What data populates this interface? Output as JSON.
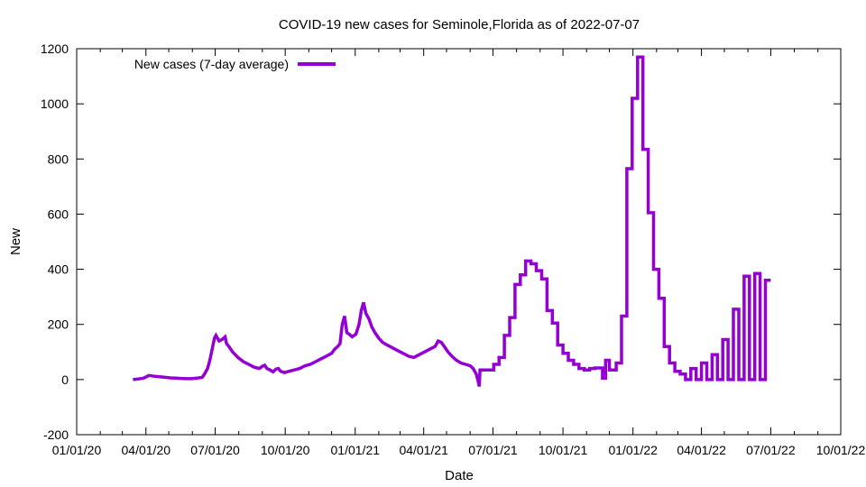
{
  "chart_data": {
    "type": "line",
    "title": "COVID-19 new cases for Seminole,Florida as of 2022-07-07",
    "xlabel": "Date",
    "ylabel": "New",
    "ylim": [
      -200,
      1200
    ],
    "xlim": [
      "2020-01-01",
      "2022-10-01"
    ],
    "x_ticks": [
      "01/01/20",
      "04/01/20",
      "07/01/20",
      "10/01/20",
      "01/01/21",
      "04/01/21",
      "07/01/21",
      "10/01/21",
      "01/01/22",
      "04/01/22",
      "07/01/22",
      "10/01/22"
    ],
    "y_ticks": [
      -200,
      0,
      200,
      400,
      600,
      800,
      1000,
      1200
    ],
    "grid": false,
    "legend": {
      "position": "top-left"
    },
    "colors": {
      "series": "#9400d3"
    },
    "series": [
      {
        "name": "New cases (7-day average)",
        "points": [
          [
            "2020-03-15",
            0
          ],
          [
            "2020-03-22",
            2
          ],
          [
            "2020-03-29",
            5
          ],
          [
            "2020-04-05",
            15
          ],
          [
            "2020-04-12",
            12
          ],
          [
            "2020-04-19",
            10
          ],
          [
            "2020-04-26",
            8
          ],
          [
            "2020-05-03",
            6
          ],
          [
            "2020-05-10",
            5
          ],
          [
            "2020-05-17",
            4
          ],
          [
            "2020-05-24",
            3
          ],
          [
            "2020-05-31",
            3
          ],
          [
            "2020-06-07",
            5
          ],
          [
            "2020-06-14",
            8
          ],
          [
            "2020-06-17",
            20
          ],
          [
            "2020-06-21",
            40
          ],
          [
            "2020-06-24",
            70
          ],
          [
            "2020-06-27",
            110
          ],
          [
            "2020-06-30",
            150
          ],
          [
            "2020-07-02",
            160
          ],
          [
            "2020-07-06",
            140
          ],
          [
            "2020-07-10",
            145
          ],
          [
            "2020-07-14",
            155
          ],
          [
            "2020-07-16",
            130
          ],
          [
            "2020-07-19",
            120
          ],
          [
            "2020-07-24",
            100
          ],
          [
            "2020-07-31",
            80
          ],
          [
            "2020-08-07",
            65
          ],
          [
            "2020-08-14",
            55
          ],
          [
            "2020-08-21",
            45
          ],
          [
            "2020-08-28",
            40
          ],
          [
            "2020-09-01",
            48
          ],
          [
            "2020-09-04",
            52
          ],
          [
            "2020-09-07",
            40
          ],
          [
            "2020-09-11",
            35
          ],
          [
            "2020-09-15",
            28
          ],
          [
            "2020-09-19",
            38
          ],
          [
            "2020-09-22",
            40
          ],
          [
            "2020-09-25",
            30
          ],
          [
            "2020-09-30",
            25
          ],
          [
            "2020-10-06",
            30
          ],
          [
            "2020-10-13",
            35
          ],
          [
            "2020-10-20",
            40
          ],
          [
            "2020-10-27",
            50
          ],
          [
            "2020-11-03",
            55
          ],
          [
            "2020-11-10",
            65
          ],
          [
            "2020-11-17",
            75
          ],
          [
            "2020-11-24",
            85
          ],
          [
            "2020-12-01",
            95
          ],
          [
            "2020-12-05",
            110
          ],
          [
            "2020-12-09",
            120
          ],
          [
            "2020-12-12",
            130
          ],
          [
            "2020-12-15",
            200
          ],
          [
            "2020-12-18",
            230
          ],
          [
            "2020-12-21",
            170
          ],
          [
            "2020-12-24",
            165
          ],
          [
            "2020-12-28",
            155
          ],
          [
            "2021-01-02",
            165
          ],
          [
            "2021-01-06",
            200
          ],
          [
            "2021-01-09",
            250
          ],
          [
            "2021-01-12",
            280
          ],
          [
            "2021-01-15",
            240
          ],
          [
            "2021-01-19",
            220
          ],
          [
            "2021-01-23",
            190
          ],
          [
            "2021-01-27",
            170
          ],
          [
            "2021-02-01",
            150
          ],
          [
            "2021-02-06",
            135
          ],
          [
            "2021-02-12",
            125
          ],
          [
            "2021-02-19",
            115
          ],
          [
            "2021-02-26",
            105
          ],
          [
            "2021-03-05",
            95
          ],
          [
            "2021-03-12",
            85
          ],
          [
            "2021-03-19",
            80
          ],
          [
            "2021-03-26",
            90
          ],
          [
            "2021-04-02",
            100
          ],
          [
            "2021-04-09",
            110
          ],
          [
            "2021-04-16",
            120
          ],
          [
            "2021-04-20",
            140
          ],
          [
            "2021-04-24",
            135
          ],
          [
            "2021-04-28",
            120
          ],
          [
            "2021-05-03",
            100
          ],
          [
            "2021-05-08",
            85
          ],
          [
            "2021-05-14",
            70
          ],
          [
            "2021-05-20",
            60
          ],
          [
            "2021-05-26",
            55
          ],
          [
            "2021-06-01",
            50
          ],
          [
            "2021-06-05",
            40
          ],
          [
            "2021-06-09",
            20
          ],
          [
            "2021-06-11",
            0
          ],
          [
            "2021-06-13",
            -25
          ],
          [
            "2021-06-14",
            35
          ],
          [
            "2021-06-20",
            35
          ],
          [
            "2021-06-26",
            35
          ],
          [
            "2021-07-02",
            35
          ],
          [
            "2021-07-02",
            55
          ],
          [
            "2021-07-09",
            55
          ],
          [
            "2021-07-09",
            80
          ],
          [
            "2021-07-16",
            80
          ],
          [
            "2021-07-16",
            160
          ],
          [
            "2021-07-23",
            160
          ],
          [
            "2021-07-23",
            225
          ],
          [
            "2021-07-30",
            225
          ],
          [
            "2021-07-30",
            345
          ],
          [
            "2021-08-06",
            345
          ],
          [
            "2021-08-06",
            380
          ],
          [
            "2021-08-13",
            380
          ],
          [
            "2021-08-13",
            430
          ],
          [
            "2021-08-20",
            430
          ],
          [
            "2021-08-20",
            420
          ],
          [
            "2021-08-27",
            420
          ],
          [
            "2021-08-27",
            395
          ],
          [
            "2021-09-03",
            395
          ],
          [
            "2021-09-03",
            365
          ],
          [
            "2021-09-10",
            365
          ],
          [
            "2021-09-10",
            250
          ],
          [
            "2021-09-17",
            250
          ],
          [
            "2021-09-17",
            205
          ],
          [
            "2021-09-24",
            205
          ],
          [
            "2021-09-24",
            125
          ],
          [
            "2021-10-01",
            125
          ],
          [
            "2021-10-01",
            95
          ],
          [
            "2021-10-08",
            95
          ],
          [
            "2021-10-08",
            70
          ],
          [
            "2021-10-15",
            70
          ],
          [
            "2021-10-15",
            55
          ],
          [
            "2021-10-22",
            55
          ],
          [
            "2021-10-22",
            40
          ],
          [
            "2021-10-29",
            40
          ],
          [
            "2021-10-29",
            35
          ],
          [
            "2021-11-05",
            35
          ],
          [
            "2021-11-05",
            40
          ],
          [
            "2021-11-12",
            40
          ],
          [
            "2021-11-12",
            42
          ],
          [
            "2021-11-22",
            42
          ],
          [
            "2021-11-22",
            5
          ],
          [
            "2021-11-26",
            5
          ],
          [
            "2021-11-26",
            70
          ],
          [
            "2021-12-01",
            70
          ],
          [
            "2021-12-01",
            35
          ],
          [
            "2021-12-10",
            35
          ],
          [
            "2021-12-10",
            60
          ],
          [
            "2021-12-17",
            60
          ],
          [
            "2021-12-17",
            230
          ],
          [
            "2021-12-24",
            230
          ],
          [
            "2021-12-24",
            765
          ],
          [
            "2021-12-31",
            765
          ],
          [
            "2021-12-31",
            1020
          ],
          [
            "2022-01-07",
            1020
          ],
          [
            "2022-01-07",
            1170
          ],
          [
            "2022-01-14",
            1170
          ],
          [
            "2022-01-14",
            835
          ],
          [
            "2022-01-21",
            835
          ],
          [
            "2022-01-21",
            605
          ],
          [
            "2022-01-28",
            605
          ],
          [
            "2022-01-28",
            400
          ],
          [
            "2022-02-04",
            400
          ],
          [
            "2022-02-04",
            295
          ],
          [
            "2022-02-11",
            295
          ],
          [
            "2022-02-11",
            120
          ],
          [
            "2022-02-18",
            120
          ],
          [
            "2022-02-18",
            60
          ],
          [
            "2022-02-25",
            60
          ],
          [
            "2022-02-25",
            30
          ],
          [
            "2022-03-04",
            30
          ],
          [
            "2022-03-04",
            20
          ],
          [
            "2022-03-11",
            20
          ],
          [
            "2022-03-11",
            0
          ],
          [
            "2022-03-18",
            0
          ],
          [
            "2022-03-18",
            40
          ],
          [
            "2022-03-25",
            40
          ],
          [
            "2022-03-25",
            0
          ],
          [
            "2022-04-01",
            0
          ],
          [
            "2022-04-01",
            60
          ],
          [
            "2022-04-08",
            60
          ],
          [
            "2022-04-08",
            0
          ],
          [
            "2022-04-15",
            0
          ],
          [
            "2022-04-15",
            90
          ],
          [
            "2022-04-22",
            90
          ],
          [
            "2022-04-22",
            0
          ],
          [
            "2022-04-29",
            0
          ],
          [
            "2022-04-29",
            145
          ],
          [
            "2022-05-06",
            145
          ],
          [
            "2022-05-06",
            0
          ],
          [
            "2022-05-13",
            0
          ],
          [
            "2022-05-13",
            255
          ],
          [
            "2022-05-20",
            255
          ],
          [
            "2022-05-20",
            0
          ],
          [
            "2022-05-27",
            0
          ],
          [
            "2022-05-27",
            375
          ],
          [
            "2022-06-03",
            375
          ],
          [
            "2022-06-03",
            0
          ],
          [
            "2022-06-10",
            0
          ],
          [
            "2022-06-10",
            385
          ],
          [
            "2022-06-17",
            385
          ],
          [
            "2022-06-17",
            0
          ],
          [
            "2022-06-24",
            0
          ],
          [
            "2022-06-24",
            360
          ],
          [
            "2022-07-01",
            360
          ]
        ]
      }
    ]
  }
}
